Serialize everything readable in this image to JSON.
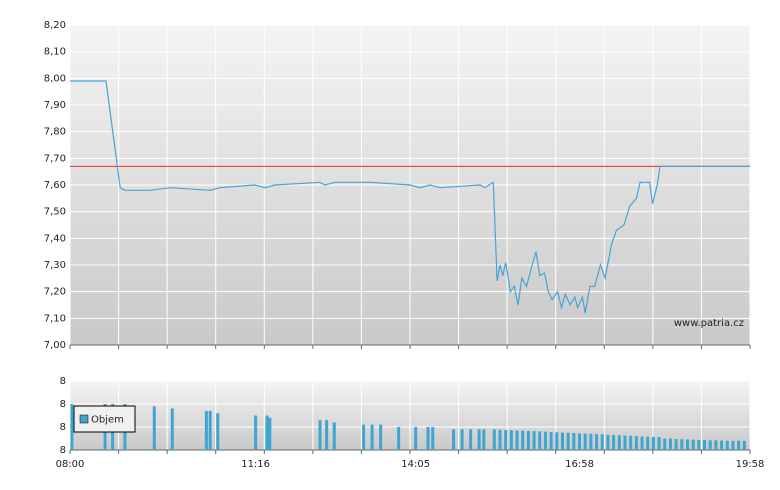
{
  "chart_data": [
    {
      "type": "line",
      "xlim": [
        "08:00",
        "19:58"
      ],
      "ylim": [
        7.0,
        8.2
      ],
      "yticks": [
        {
          "value": 7.0,
          "label": "7,00"
        },
        {
          "value": 7.1,
          "label": "7,10"
        },
        {
          "value": 7.2,
          "label": "7,20"
        },
        {
          "value": 7.3,
          "label": "7,30"
        },
        {
          "value": 7.4,
          "label": "7,40"
        },
        {
          "value": 7.5,
          "label": "7,50"
        },
        {
          "value": 7.6,
          "label": "7,60"
        },
        {
          "value": 7.7,
          "label": "7,70"
        },
        {
          "value": 7.8,
          "label": "7,80"
        },
        {
          "value": 7.9,
          "label": "7,90"
        },
        {
          "value": 8.0,
          "label": "8,00"
        },
        {
          "value": 8.1,
          "label": "8,10"
        },
        {
          "value": 8.2,
          "label": "8,20"
        }
      ],
      "grid": true,
      "ref_line": 7.67,
      "ref_color": "#e03030",
      "color": "#4aa3d2",
      "watermark": "www.patria.cz",
      "x": [
        "08:00",
        "08:38",
        "08:53",
        "08:58",
        "09:24",
        "09:46",
        "10:28",
        "10:38",
        "11:15",
        "11:26",
        "11:36",
        "12:24",
        "12:29",
        "12:40",
        "13:17",
        "13:59",
        "14:10",
        "14:20",
        "14:31",
        "15:13",
        "15:18",
        "15:27",
        "15:31",
        "15:34",
        "15:37",
        "15:40",
        "15:45",
        "15:49",
        "15:53",
        "15:57",
        "16:02",
        "16:08",
        "16:12",
        "16:16",
        "16:21",
        "16:25",
        "16:29",
        "16:35",
        "16:39",
        "16:43",
        "16:48",
        "16:53",
        "16:56",
        "17:01",
        "17:04",
        "17:09",
        "17:14",
        "17:20",
        "17:25",
        "17:32",
        "17:37",
        "17:45",
        "17:51",
        "17:58",
        "18:02",
        "18:07",
        "18:12",
        "18:15",
        "18:20",
        "18:23",
        "19:58"
      ],
      "values": [
        7.99,
        7.99,
        7.59,
        7.58,
        7.58,
        7.59,
        7.58,
        7.59,
        7.6,
        7.59,
        7.6,
        7.61,
        7.6,
        7.61,
        7.61,
        7.6,
        7.59,
        7.6,
        7.59,
        7.6,
        7.59,
        7.61,
        7.24,
        7.3,
        7.26,
        7.31,
        7.2,
        7.22,
        7.15,
        7.25,
        7.22,
        7.3,
        7.35,
        7.26,
        7.27,
        7.2,
        7.17,
        7.2,
        7.14,
        7.19,
        7.15,
        7.18,
        7.14,
        7.18,
        7.12,
        7.22,
        7.22,
        7.3,
        7.25,
        7.38,
        7.43,
        7.45,
        7.52,
        7.55,
        7.61,
        7.61,
        7.61,
        7.53,
        7.6,
        7.67,
        7.67
      ]
    },
    {
      "type": "bar",
      "xlim": [
        "08:00",
        "19:58"
      ],
      "xticks": [
        "08:00",
        "11:16",
        "14:05",
        "16:58",
        "19:58"
      ],
      "ylim": [
        0,
        3
      ],
      "yticks": [
        {
          "value": 0,
          "label": "8"
        },
        {
          "value": 1,
          "label": "8"
        },
        {
          "value": 2,
          "label": "8"
        },
        {
          "value": 3,
          "label": "8"
        }
      ],
      "grid": true,
      "legend": "upper left",
      "series": [
        {
          "name": "Objem",
          "color": "#3ea4d0",
          "x": [
            "08:02",
            "08:37",
            "08:45",
            "08:58",
            "09:29",
            "09:48",
            "10:24",
            "10:28",
            "10:36",
            "11:16",
            "11:28",
            "11:31",
            "12:24",
            "12:31",
            "12:39",
            "13:10",
            "13:19",
            "13:28",
            "13:47",
            "14:05",
            "14:18",
            "14:23",
            "14:45",
            "14:54",
            "15:03",
            "15:12",
            "15:17",
            "15:28",
            "15:34",
            "15:40",
            "15:46",
            "15:52",
            "15:58",
            "16:04",
            "16:10",
            "16:16",
            "16:22",
            "16:28",
            "16:34",
            "16:40",
            "16:46",
            "16:52",
            "16:58",
            "17:04",
            "17:10",
            "17:16",
            "17:22",
            "17:28",
            "17:34",
            "17:40",
            "17:46",
            "17:52",
            "17:58",
            "18:04",
            "18:10",
            "18:16",
            "18:22",
            "18:28",
            "18:34",
            "18:40",
            "18:46",
            "18:52",
            "18:58",
            "19:04",
            "19:10",
            "19:16",
            "19:22",
            "19:28",
            "19:34",
            "19:40",
            "19:46",
            "19:52"
          ],
          "values": [
            2.0,
            2.0,
            2.0,
            2.0,
            1.9,
            1.8,
            1.7,
            1.7,
            1.6,
            1.5,
            1.5,
            1.4,
            1.3,
            1.3,
            1.2,
            1.1,
            1.1,
            1.1,
            1.0,
            1.0,
            1.0,
            1.0,
            0.9,
            0.9,
            0.9,
            0.9,
            0.9,
            0.9,
            0.88,
            0.87,
            0.86,
            0.85,
            0.84,
            0.83,
            0.82,
            0.81,
            0.8,
            0.78,
            0.77,
            0.76,
            0.75,
            0.74,
            0.72,
            0.71,
            0.7,
            0.69,
            0.68,
            0.66,
            0.65,
            0.64,
            0.63,
            0.62,
            0.6,
            0.59,
            0.58,
            0.57,
            0.56,
            0.5,
            0.5,
            0.48,
            0.47,
            0.46,
            0.45,
            0.44,
            0.43,
            0.42,
            0.42,
            0.41,
            0.4,
            0.4,
            0.4,
            0.4
          ]
        }
      ]
    }
  ]
}
